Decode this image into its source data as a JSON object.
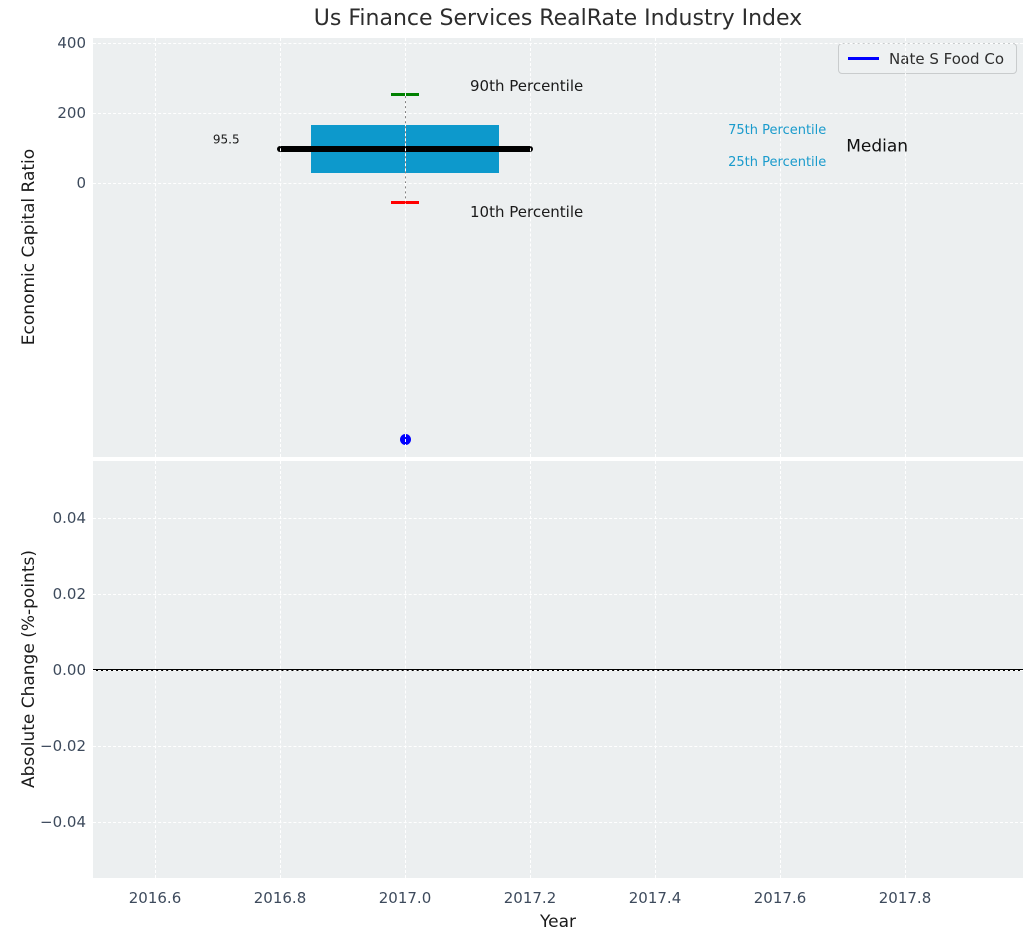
{
  "title": "Us Finance Services RealRate Industry Index",
  "legend": {
    "label": "Nate S Food Co",
    "line_color": "#0000ff"
  },
  "colors": {
    "figure_bg": "#ffffff",
    "plot_bg": "#eceff0",
    "grid": "#ffffff",
    "box_fill": "#0d99cc",
    "median_line": "#000000",
    "whisker": "#808080",
    "p90_cap": "#008000",
    "p10_cap": "#ff0000",
    "company_point": "#0000ff",
    "tick_label": "#3d4a5c",
    "percentile_label": "#1a9bcc",
    "zero_line": "#000000"
  },
  "chart_data": [
    {
      "type": "boxplot",
      "title": "Us Finance Services RealRate Industry Index",
      "ylabel": "Economic Capital Ratio",
      "xlim": [
        2016.5,
        2017.99
      ],
      "ylim": [
        -780,
        413
      ],
      "grid": true,
      "legend_position": "upper right",
      "yticks": [
        {
          "value": 400,
          "label": "400"
        },
        {
          "value": 200,
          "label": "200"
        },
        {
          "value": 0,
          "label": "0"
        }
      ],
      "box": {
        "x": 2017.0,
        "median": 95.5,
        "q1": 29,
        "q3": 166,
        "p10": -55,
        "p90": 252,
        "box_half_width": 0.15,
        "median_half_width": 0.205,
        "cap_half_width": 0.022
      },
      "company_point": {
        "name": "Nate S Food Co",
        "x": 2017.0,
        "y": -730
      },
      "annotations": [
        {
          "text": "95.5",
          "x": 2016.714,
          "y": 122,
          "size": 12,
          "color": "#1a1a1a",
          "align": "center"
        },
        {
          "text": "90th Percentile",
          "x": 2017.104,
          "y": 276,
          "size": 15,
          "color": "#1a1a1a",
          "align": "left"
        },
        {
          "text": "10th Percentile",
          "x": 2017.104,
          "y": -83,
          "size": 15,
          "color": "#1a1a1a",
          "align": "left"
        },
        {
          "text": "75th Percentile",
          "x": 2017.517,
          "y": 147,
          "size": 13,
          "color": "#1a9bcc",
          "align": "left"
        },
        {
          "text": "25th Percentile",
          "x": 2017.517,
          "y": 57,
          "size": 13,
          "color": "#1a9bcc",
          "align": "left"
        },
        {
          "text": "Median",
          "x": 2017.706,
          "y": 102,
          "size": 17,
          "color": "#111111",
          "align": "left"
        }
      ]
    },
    {
      "type": "line",
      "ylabel": "Absolute Change (%-points)",
      "xlabel": "Year",
      "xlim": [
        2016.5,
        2017.99
      ],
      "ylim": [
        -0.055,
        0.055
      ],
      "grid": true,
      "zero_line_y": 0,
      "series": [],
      "yticks": [
        {
          "value": 0.04,
          "label": "0.04"
        },
        {
          "value": 0.02,
          "label": "0.02"
        },
        {
          "value": 0,
          "label": "0.00"
        },
        {
          "value": -0.02,
          "label": "−0.02"
        },
        {
          "value": -0.04,
          "label": "−0.04"
        }
      ],
      "xticks": [
        {
          "value": 2016.6,
          "label": "2016.6"
        },
        {
          "value": 2016.8,
          "label": "2016.8"
        },
        {
          "value": 2017.0,
          "label": "2017.0"
        },
        {
          "value": 2017.2,
          "label": "2017.2"
        },
        {
          "value": 2017.4,
          "label": "2017.4"
        },
        {
          "value": 2017.6,
          "label": "2017.6"
        },
        {
          "value": 2017.8,
          "label": "2017.8"
        }
      ]
    }
  ]
}
